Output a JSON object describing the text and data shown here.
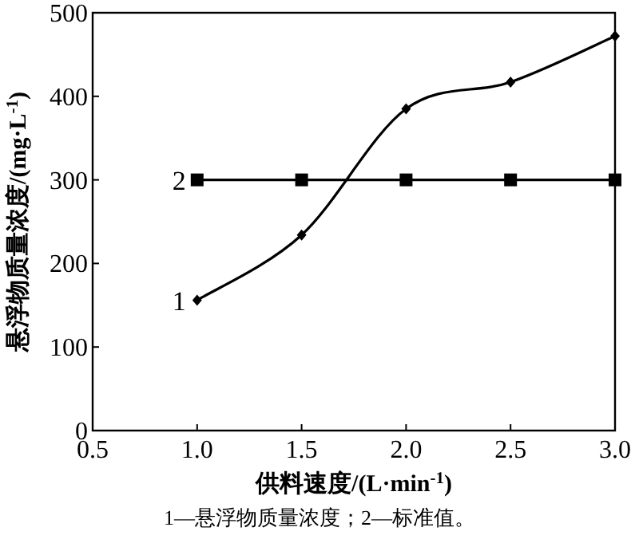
{
  "chart_data": {
    "type": "line",
    "xlabel": "供料速度/(L·min$^{-1}$)",
    "ylabel": "悬浮物质量浓度/(mg·L$^{-1}$)",
    "x": [
      1.0,
      1.5,
      2.0,
      2.5,
      3.0
    ],
    "series": [
      {
        "name": "1",
        "color": "#000000",
        "marker": "diamond",
        "values": [
          156,
          234,
          385,
          417,
          472
        ]
      },
      {
        "name": "2",
        "color": "#000000",
        "marker": "square",
        "values": [
          300,
          300,
          300,
          300,
          300
        ]
      }
    ],
    "xlim": [
      0.5,
      3.0
    ],
    "ylim": [
      0,
      500
    ],
    "xticks": [
      {
        "value": 0.5,
        "label": "0.5"
      },
      {
        "value": 1.0,
        "label": "1.0"
      },
      {
        "value": 1.5,
        "label": "1.5"
      },
      {
        "value": 2.0,
        "label": "2.0"
      },
      {
        "value": 2.5,
        "label": "2.5"
      },
      {
        "value": 3.0,
        "label": "3.0"
      }
    ],
    "yticks": [
      0,
      100,
      200,
      300,
      400,
      500
    ],
    "grid": false,
    "line_style": "solid",
    "annotations": [
      "1—悬浮物质量浓度；2—标准值。"
    ]
  }
}
